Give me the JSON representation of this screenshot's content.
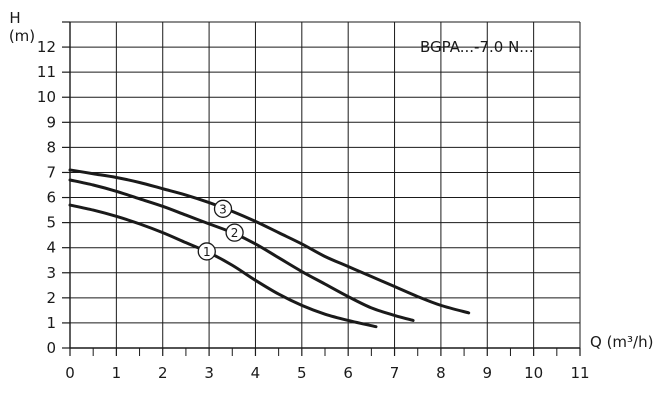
{
  "chart_data": {
    "type": "line",
    "title": "",
    "annotation": "BGPA...-7.0 N...",
    "ylabel_top": "H",
    "ylabel_bottom": "(m)",
    "xlabel": "Q (m³/h)",
    "xlim": [
      0,
      11
    ],
    "ylim": [
      0,
      13
    ],
    "x_ticks": [
      "0",
      "1",
      "2",
      "3",
      "4",
      "5",
      "6",
      "7",
      "8",
      "9",
      "10",
      "11"
    ],
    "y_ticks": [
      "0",
      "1",
      "2",
      "3",
      "4",
      "5",
      "6",
      "7",
      "8",
      "9",
      "10",
      "11",
      "12"
    ],
    "minor_tick_step_x": 0.5,
    "grid": true,
    "line_color": "#1a1a1a",
    "series": [
      {
        "name": "1",
        "x": [
          0,
          0.5,
          1,
          1.5,
          2,
          2.5,
          3,
          3.5,
          4,
          4.5,
          5,
          5.5,
          6,
          6.6
        ],
        "y": [
          5.7,
          5.5,
          5.25,
          4.95,
          4.6,
          4.2,
          3.8,
          3.3,
          2.7,
          2.15,
          1.7,
          1.35,
          1.1,
          0.85
        ],
        "badge": {
          "text": "1",
          "x": 2.95,
          "y": 3.85
        }
      },
      {
        "name": "2",
        "x": [
          0,
          0.5,
          1,
          1.5,
          2,
          2.5,
          3,
          3.5,
          4,
          4.5,
          5,
          5.5,
          6,
          6.5,
          7,
          7.4
        ],
        "y": [
          6.7,
          6.5,
          6.25,
          5.95,
          5.65,
          5.3,
          4.95,
          4.6,
          4.15,
          3.6,
          3.05,
          2.55,
          2.05,
          1.6,
          1.3,
          1.1
        ],
        "badge": {
          "text": "2",
          "x": 3.55,
          "y": 4.6
        }
      },
      {
        "name": "3",
        "x": [
          0,
          0.5,
          1,
          1.5,
          2,
          2.5,
          3,
          3.5,
          4,
          4.5,
          5,
          5.5,
          6,
          6.5,
          7,
          7.5,
          8,
          8.6
        ],
        "y": [
          7.1,
          6.95,
          6.8,
          6.6,
          6.35,
          6.1,
          5.8,
          5.45,
          5.05,
          4.6,
          4.15,
          3.65,
          3.25,
          2.85,
          2.45,
          2.05,
          1.7,
          1.4
        ],
        "badge": {
          "text": "3",
          "x": 3.3,
          "y": 5.55
        }
      }
    ]
  }
}
